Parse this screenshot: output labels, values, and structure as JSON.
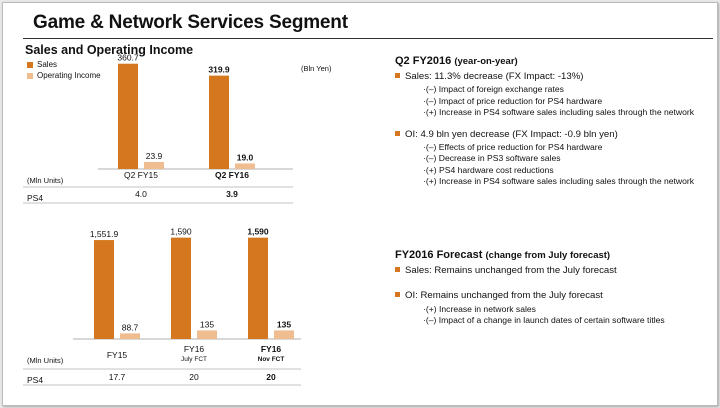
{
  "title": "Game & Network Services Segment",
  "left": {
    "subtitle": "Sales and Operating Income",
    "legend": {
      "sales": "Sales",
      "oi": "Operating Income"
    },
    "unit_bln": "(Bln Yen)",
    "unit_mln": "(Mln Units)",
    "row_label": "PS4"
  },
  "colors": {
    "sales": "#d4771e",
    "oi": "#f0bd90"
  },
  "chart_data": [
    {
      "type": "bar",
      "title": "Sales and Operating Income (Q2)",
      "ylabel": "Bln Yen",
      "categories": [
        "Q2 FY15",
        "Q2 FY16"
      ],
      "category_sublabels": [
        "",
        ""
      ],
      "bold_categories": [
        false,
        true
      ],
      "series": [
        {
          "name": "Sales",
          "values": [
            360.7,
            319.9
          ],
          "labels": [
            "360.7",
            "319.9"
          ]
        },
        {
          "name": "Operating Income",
          "values": [
            23.9,
            19.0
          ],
          "labels": [
            "23.9",
            "19.0"
          ]
        }
      ],
      "ylim": [
        0,
        370
      ],
      "table": {
        "row": "PS4",
        "unit": "Mln Units",
        "values": [
          "4.0",
          "3.9"
        ]
      }
    },
    {
      "type": "bar",
      "title": "Sales and Operating Income (FY)",
      "ylabel": "Bln Yen",
      "categories": [
        "FY15",
        "FY16",
        "FY16"
      ],
      "category_sublabels": [
        "",
        "July FCT",
        "Nov FCT"
      ],
      "bold_categories": [
        false,
        false,
        true
      ],
      "series": [
        {
          "name": "Sales",
          "values": [
            1551.9,
            1590,
            1590
          ],
          "labels": [
            "1,551.9",
            "1,590",
            "1,590"
          ]
        },
        {
          "name": "Operating Income",
          "values": [
            88.7,
            135,
            135
          ],
          "labels": [
            "88.7",
            "135",
            "135"
          ]
        }
      ],
      "ylim": [
        0,
        1600
      ],
      "table": {
        "row": "PS4",
        "unit": "Mln Units",
        "values": [
          "17.7",
          "20",
          "20"
        ]
      }
    }
  ],
  "q2": {
    "heading": "Q2 FY2016",
    "heading_note": "(year-on-year)",
    "sales": {
      "text": "Sales: 11.3% decrease (FX Impact:  -13%)",
      "items": [
        "·(–) Impact of foreign exchange rates",
        "·(–) Impact of price reduction for PS4 hardware",
        "·(+) Increase in PS4 software sales including sales through the network"
      ]
    },
    "oi": {
      "text": "OI:  4.9 bln yen decrease (FX Impact:  -0.9 bln yen)",
      "items": [
        "·(–) Effects of price reduction for PS4 hardware",
        "·(–) Decrease in PS3 software sales",
        "·(+) PS4 hardware cost reductions",
        "·(+) Increase in PS4 software sales including sales through the network"
      ]
    }
  },
  "fy": {
    "heading": "FY2016 Forecast",
    "heading_note": "(change from July forecast)",
    "sales": {
      "text": "Sales: Remains unchanged from the July forecast"
    },
    "oi": {
      "text": "OI: Remains unchanged from the July forecast",
      "items": [
        "·(+) Increase in network sales",
        "·(–) Impact of a change in launch dates of certain software titles"
      ]
    }
  }
}
